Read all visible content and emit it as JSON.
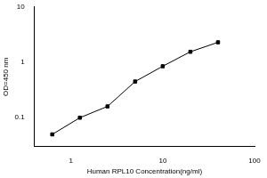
{
  "chart_data": {
    "type": "line",
    "x_label": "Human RPL10 Concentration(ng/ml)",
    "y_label": "OD=450 nm",
    "x": [
      0.625,
      1.25,
      2.5,
      5,
      10,
      20,
      40
    ],
    "values": [
      0.05,
      0.1,
      0.16,
      0.45,
      0.85,
      1.55,
      2.3
    ],
    "xlim": [
      0.4,
      100
    ],
    "xticks": [
      1,
      10,
      100
    ],
    "ylim": [
      0.03,
      10
    ],
    "yticks": [
      0.1,
      1,
      10
    ],
    "log": true,
    "grid": false,
    "color": "#000000",
    "marker": "square",
    "line_style": "solid"
  }
}
